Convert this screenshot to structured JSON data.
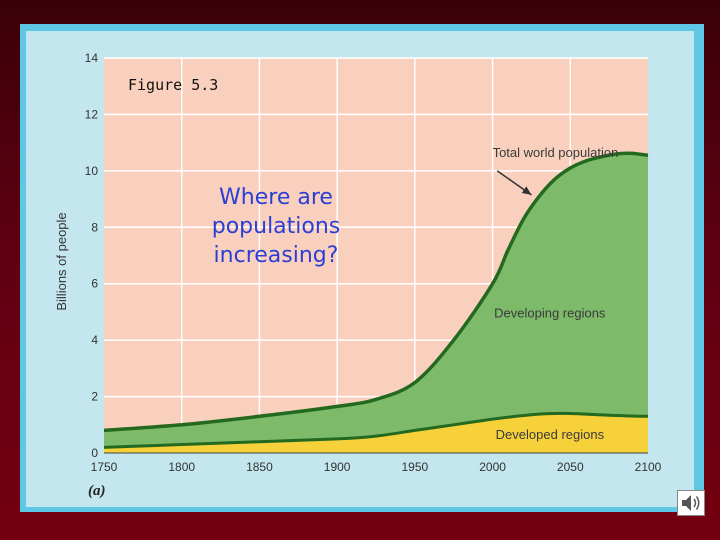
{
  "slide": {
    "figure_label": "Figure 5.3",
    "question": "Where are populations increasing?",
    "speaker_icon": "speaker-icon"
  },
  "colors": {
    "plot_background": "#f9d0bd",
    "developing_fill": "#7dbb6b",
    "developed_fill": "#f7d13a",
    "outline": "#23691f",
    "question_text": "#2b3fd6"
  },
  "chart_data": {
    "type": "area",
    "panel_label": "(a)",
    "title": "",
    "xlabel": "",
    "ylabel": "Billions of people",
    "xlim": [
      1750,
      2100
    ],
    "ylim": [
      0,
      14
    ],
    "x_ticks": [
      1750,
      1800,
      1850,
      1900,
      1950,
      2000,
      2050,
      2100
    ],
    "y_ticks": [
      0,
      2,
      4,
      6,
      8,
      10,
      12,
      14
    ],
    "grid": true,
    "x": [
      1750,
      1800,
      1850,
      1900,
      1925,
      1950,
      1975,
      2000,
      2010,
      2020,
      2030,
      2040,
      2050,
      2060,
      2070,
      2080,
      2090,
      2100
    ],
    "series": [
      {
        "name": "Developed regions",
        "values": [
          0.2,
          0.3,
          0.4,
          0.5,
          0.6,
          0.8,
          1.0,
          1.2,
          1.27,
          1.33,
          1.38,
          1.4,
          1.4,
          1.38,
          1.35,
          1.33,
          1.31,
          1.3
        ]
      },
      {
        "name": "Total world population",
        "values": [
          0.8,
          1.0,
          1.3,
          1.65,
          1.9,
          2.5,
          4.0,
          6.0,
          7.2,
          8.3,
          9.1,
          9.7,
          10.1,
          10.35,
          10.5,
          10.6,
          10.62,
          10.55
        ]
      }
    ],
    "annotations": [
      {
        "text": "Total world population",
        "x": 2000,
        "y": 10.5
      },
      {
        "text": "Developing regions",
        "x": 2001,
        "y": 4.8
      },
      {
        "text": "Developed regions",
        "x": 2002,
        "y": 0.5
      }
    ]
  }
}
